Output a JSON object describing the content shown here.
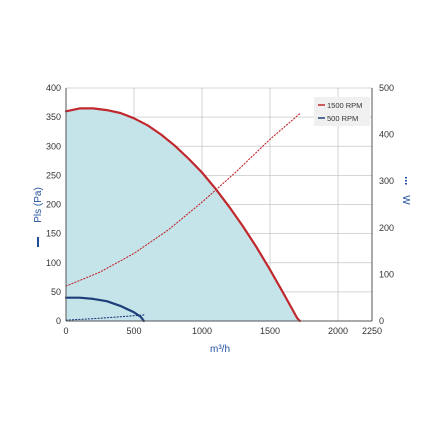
{
  "chart_data": {
    "type": "line",
    "title": "",
    "xlabel": "m³/h",
    "ylabel_left": "Pls (Pa)",
    "ylabel_right": "W",
    "xlim": [
      0,
      2250
    ],
    "ylim_left": [
      0,
      400
    ],
    "ylim_right": [
      0,
      500
    ],
    "x_ticks": [
      0,
      500,
      1000,
      1500,
      2000,
      2250
    ],
    "y_left_ticks": [
      0,
      50,
      100,
      150,
      200,
      250,
      300,
      350,
      400
    ],
    "y_right_ticks": [
      0,
      100,
      200,
      300,
      400,
      500
    ],
    "grid": true,
    "legend_position": "top-right",
    "legend": [
      "1500 RPM",
      "500 RPM"
    ],
    "colors": {
      "rpm1500": "#c0282d",
      "rpm500": "#1f3f7a",
      "fill": "#c5e4ea",
      "grid": "#c8c8c8",
      "axis_title": "#1f4e9c"
    },
    "series": [
      {
        "name": "1500 RPM",
        "axis": "left",
        "style": "solid",
        "x": [
          0,
          100,
          200,
          300,
          400,
          500,
          600,
          700,
          800,
          900,
          1000,
          1100,
          1200,
          1300,
          1400,
          1500,
          1600,
          1700,
          1720
        ],
        "values": [
          360,
          365,
          365,
          362,
          357,
          348,
          336,
          320,
          301,
          279,
          255,
          227,
          196,
          163,
          127,
          88,
          47,
          5,
          0
        ]
      },
      {
        "name": "500 RPM",
        "axis": "left",
        "style": "solid",
        "x": [
          0,
          100,
          200,
          300,
          400,
          500,
          550,
          573
        ],
        "values": [
          40,
          40,
          38,
          34,
          26,
          15,
          7,
          0
        ]
      },
      {
        "name": "1500 RPM",
        "axis": "right",
        "style": "dotted",
        "x": [
          0,
          250,
          500,
          750,
          1000,
          1250,
          1500,
          1720
        ],
        "values": [
          75,
          105,
          145,
          195,
          255,
          320,
          390,
          445
        ]
      },
      {
        "name": "500 RPM",
        "axis": "right",
        "style": "dotted",
        "x": [
          0,
          200,
          400,
          580
        ],
        "values": [
          2,
          5,
          9,
          13
        ]
      }
    ]
  }
}
